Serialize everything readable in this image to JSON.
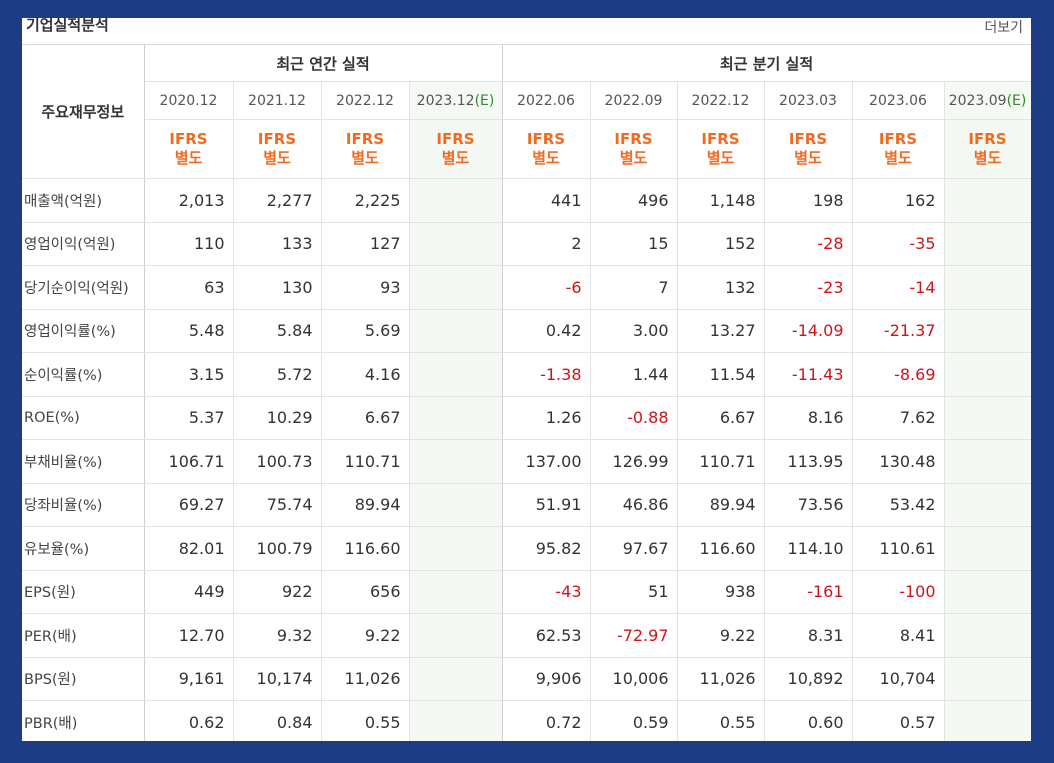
{
  "section_title": "기업실적분석",
  "more_link": "더보기",
  "header": {
    "row_title": "주요재무정보",
    "annual_group": "최근 연간 실적",
    "quarter_group": "최근 분기 실적",
    "periods": [
      {
        "label": "2020.12",
        "suffix": "",
        "estimate": false
      },
      {
        "label": "2021.12",
        "suffix": "",
        "estimate": false
      },
      {
        "label": "2022.12",
        "suffix": "",
        "estimate": false
      },
      {
        "label": "2023.12",
        "suffix": "(E)",
        "estimate": true
      },
      {
        "label": "2022.06",
        "suffix": "",
        "estimate": false
      },
      {
        "label": "2022.09",
        "suffix": "",
        "estimate": false
      },
      {
        "label": "2022.12",
        "suffix": "",
        "estimate": false
      },
      {
        "label": "2023.03",
        "suffix": "",
        "estimate": false
      },
      {
        "label": "2023.06",
        "suffix": "",
        "estimate": false
      },
      {
        "label": "2023.09",
        "suffix": "(E)",
        "estimate": true
      }
    ],
    "ifrs_line1": "IFRS",
    "ifrs_line2": "별도"
  },
  "rows": [
    {
      "label": "매출액(억원)",
      "values": [
        "2,013",
        "2,277",
        "2,225",
        "",
        "441",
        "496",
        "1,148",
        "198",
        "162",
        ""
      ]
    },
    {
      "label": "영업이익(억원)",
      "values": [
        "110",
        "133",
        "127",
        "",
        "2",
        "15",
        "152",
        "-28",
        "-35",
        ""
      ]
    },
    {
      "label": "당기순이익(억원)",
      "values": [
        "63",
        "130",
        "93",
        "",
        "-6",
        "7",
        "132",
        "-23",
        "-14",
        ""
      ]
    },
    {
      "label": "영업이익률(%)",
      "values": [
        "5.48",
        "5.84",
        "5.69",
        "",
        "0.42",
        "3.00",
        "13.27",
        "-14.09",
        "-21.37",
        ""
      ]
    },
    {
      "label": "순이익률(%)",
      "values": [
        "3.15",
        "5.72",
        "4.16",
        "",
        "-1.38",
        "1.44",
        "11.54",
        "-11.43",
        "-8.69",
        ""
      ]
    },
    {
      "label": "ROE(%)",
      "values": [
        "5.37",
        "10.29",
        "6.67",
        "",
        "1.26",
        "-0.88",
        "6.67",
        "8.16",
        "7.62",
        ""
      ]
    },
    {
      "label": "부채비율(%)",
      "values": [
        "106.71",
        "100.73",
        "110.71",
        "",
        "137.00",
        "126.99",
        "110.71",
        "113.95",
        "130.48",
        ""
      ]
    },
    {
      "label": "당좌비율(%)",
      "values": [
        "69.27",
        "75.74",
        "89.94",
        "",
        "51.91",
        "46.86",
        "89.94",
        "73.56",
        "53.42",
        ""
      ]
    },
    {
      "label": "유보율(%)",
      "values": [
        "82.01",
        "100.79",
        "116.60",
        "",
        "95.82",
        "97.67",
        "116.60",
        "114.10",
        "110.61",
        ""
      ]
    },
    {
      "label": "EPS(원)",
      "values": [
        "449",
        "922",
        "656",
        "",
        "-43",
        "51",
        "938",
        "-161",
        "-100",
        ""
      ]
    },
    {
      "label": "PER(배)",
      "values": [
        "12.70",
        "9.32",
        "9.22",
        "",
        "62.53",
        "-72.97",
        "9.22",
        "8.31",
        "8.41",
        ""
      ]
    },
    {
      "label": "BPS(원)",
      "values": [
        "9,161",
        "10,174",
        "11,026",
        "",
        "9,906",
        "10,006",
        "11,026",
        "10,892",
        "10,704",
        ""
      ]
    },
    {
      "label": "PBR(배)",
      "values": [
        "0.62",
        "0.84",
        "0.55",
        "",
        "0.72",
        "0.59",
        "0.55",
        "0.60",
        "0.57",
        ""
      ]
    }
  ],
  "colors": {
    "frame": "#1e3b85",
    "ifrs_orange": "#f26a21",
    "negative_red": "#d0141b",
    "estimate_bg": "#f4f9f4",
    "estimate_green": "#2a8c2a"
  }
}
